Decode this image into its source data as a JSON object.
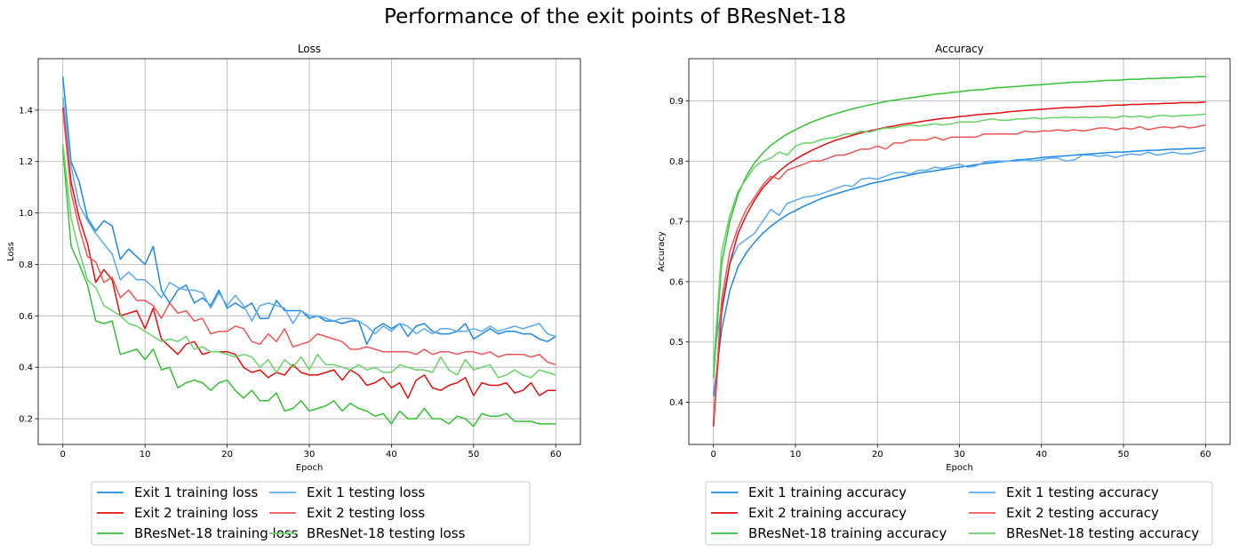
{
  "figure_title": "Performance of the exit points of BResNet-18",
  "colors": {
    "exit1_train": "#1e88e5",
    "exit1_test": "#5aaaf5",
    "exit2_train": "#e01010",
    "exit2_test": "#f05555",
    "bresnet_train": "#33c233",
    "bresnet_test": "#66d466",
    "grid": "#b0b0b0"
  },
  "chart_data": [
    {
      "type": "line",
      "title": "Loss",
      "xlabel": "Epoch",
      "ylabel": "Loss",
      "xlim": [
        -3,
        63
      ],
      "ylim": [
        0.1,
        1.6
      ],
      "xticks": [
        0,
        10,
        20,
        30,
        40,
        50,
        60
      ],
      "yticks": [
        0.2,
        0.4,
        0.6,
        0.8,
        1.0,
        1.2,
        1.4
      ],
      "ytick_labels": [
        "0.2",
        "0.4",
        "0.6",
        "0.8",
        "1.0",
        "1.2",
        "1.4"
      ],
      "grid": true,
      "legend_placement": "below",
      "series": [
        {
          "name": "Exit 1 training loss",
          "color_key": "exit1_train",
          "values": [
            1.53,
            1.2,
            1.12,
            0.98,
            0.93,
            0.97,
            0.95,
            0.82,
            0.86,
            0.83,
            0.8,
            0.87,
            0.7,
            0.65,
            0.7,
            0.72,
            0.65,
            0.67,
            0.64,
            0.7,
            0.63,
            0.65,
            0.63,
            0.65,
            0.59,
            0.59,
            0.66,
            0.62,
            0.62,
            0.62,
            0.59,
            0.6,
            0.58,
            0.58,
            0.57,
            0.58,
            0.58,
            0.49,
            0.55,
            0.57,
            0.55,
            0.57,
            0.52,
            0.56,
            0.57,
            0.54,
            0.53,
            0.53,
            0.54,
            0.57,
            0.51,
            0.53,
            0.55,
            0.53,
            0.54,
            0.54,
            0.53,
            0.53,
            0.51,
            0.5,
            0.52
          ]
        },
        {
          "name": "Exit 1 testing loss",
          "color_key": "exit1_test",
          "values": [
            1.45,
            1.18,
            1.03,
            0.97,
            0.92,
            0.88,
            0.84,
            0.74,
            0.77,
            0.74,
            0.74,
            0.71,
            0.67,
            0.73,
            0.71,
            0.7,
            0.7,
            0.69,
            0.63,
            0.69,
            0.64,
            0.68,
            0.64,
            0.58,
            0.64,
            0.65,
            0.64,
            0.63,
            0.57,
            0.62,
            0.6,
            0.6,
            0.59,
            0.58,
            0.59,
            0.59,
            0.58,
            0.56,
            0.53,
            0.56,
            0.54,
            0.57,
            0.56,
            0.53,
            0.55,
            0.53,
            0.55,
            0.55,
            0.54,
            0.54,
            0.55,
            0.54,
            0.56,
            0.54,
            0.55,
            0.56,
            0.55,
            0.56,
            0.57,
            0.53,
            0.52
          ]
        },
        {
          "name": "Exit 2 training loss",
          "color_key": "exit2_train",
          "values": [
            1.41,
            1.12,
            0.98,
            0.88,
            0.73,
            0.78,
            0.74,
            0.6,
            0.61,
            0.62,
            0.55,
            0.63,
            0.51,
            0.48,
            0.45,
            0.49,
            0.5,
            0.45,
            0.46,
            0.46,
            0.46,
            0.45,
            0.4,
            0.38,
            0.39,
            0.36,
            0.38,
            0.37,
            0.41,
            0.38,
            0.37,
            0.37,
            0.38,
            0.39,
            0.35,
            0.39,
            0.37,
            0.33,
            0.34,
            0.36,
            0.32,
            0.34,
            0.28,
            0.35,
            0.37,
            0.32,
            0.31,
            0.33,
            0.34,
            0.36,
            0.29,
            0.34,
            0.33,
            0.33,
            0.34,
            0.3,
            0.31,
            0.34,
            0.29,
            0.31,
            0.31
          ]
        },
        {
          "name": "Exit 2 testing loss",
          "color_key": "exit2_test",
          "values": [
            1.4,
            1.08,
            0.94,
            0.83,
            0.81,
            0.73,
            0.75,
            0.67,
            0.7,
            0.66,
            0.66,
            0.64,
            0.59,
            0.65,
            0.61,
            0.62,
            0.58,
            0.59,
            0.53,
            0.54,
            0.54,
            0.56,
            0.55,
            0.5,
            0.49,
            0.53,
            0.5,
            0.55,
            0.48,
            0.49,
            0.5,
            0.53,
            0.52,
            0.51,
            0.5,
            0.47,
            0.47,
            0.48,
            0.47,
            0.46,
            0.46,
            0.46,
            0.46,
            0.45,
            0.47,
            0.45,
            0.46,
            0.46,
            0.45,
            0.46,
            0.46,
            0.45,
            0.46,
            0.44,
            0.45,
            0.45,
            0.45,
            0.44,
            0.45,
            0.42,
            0.41
          ]
        },
        {
          "name": "BResNet-18 training loss",
          "color_key": "bresnet_train",
          "values": [
            1.25,
            0.87,
            0.8,
            0.72,
            0.58,
            0.57,
            0.58,
            0.45,
            0.46,
            0.47,
            0.43,
            0.47,
            0.39,
            0.4,
            0.32,
            0.34,
            0.35,
            0.34,
            0.31,
            0.34,
            0.35,
            0.31,
            0.28,
            0.31,
            0.27,
            0.27,
            0.3,
            0.23,
            0.24,
            0.27,
            0.23,
            0.24,
            0.25,
            0.27,
            0.23,
            0.26,
            0.24,
            0.23,
            0.21,
            0.22,
            0.18,
            0.23,
            0.2,
            0.2,
            0.24,
            0.2,
            0.2,
            0.18,
            0.21,
            0.2,
            0.17,
            0.22,
            0.21,
            0.21,
            0.22,
            0.19,
            0.19,
            0.19,
            0.18,
            0.18,
            0.18
          ]
        },
        {
          "name": "BResNet-18 testing loss",
          "color_key": "bresnet_test",
          "values": [
            1.27,
            0.98,
            0.85,
            0.74,
            0.71,
            0.64,
            0.62,
            0.6,
            0.57,
            0.56,
            0.54,
            0.52,
            0.5,
            0.51,
            0.5,
            0.52,
            0.47,
            0.48,
            0.46,
            0.46,
            0.45,
            0.44,
            0.45,
            0.44,
            0.4,
            0.43,
            0.38,
            0.43,
            0.4,
            0.44,
            0.39,
            0.45,
            0.41,
            0.41,
            0.4,
            0.39,
            0.41,
            0.39,
            0.4,
            0.38,
            0.38,
            0.41,
            0.4,
            0.39,
            0.39,
            0.38,
            0.44,
            0.39,
            0.37,
            0.43,
            0.39,
            0.4,
            0.41,
            0.36,
            0.37,
            0.39,
            0.37,
            0.36,
            0.39,
            0.38,
            0.37
          ]
        }
      ]
    },
    {
      "type": "line",
      "title": "Accuracy",
      "xlabel": "Epoch",
      "ylabel": "Accuracy",
      "xlim": [
        -3,
        63
      ],
      "ylim": [
        0.33,
        0.97
      ],
      "xticks": [
        0,
        10,
        20,
        30,
        40,
        50,
        60
      ],
      "yticks": [
        0.4,
        0.5,
        0.6,
        0.7,
        0.8,
        0.9
      ],
      "ytick_labels": [
        "0.4",
        "0.5",
        "0.6",
        "0.7",
        "0.8",
        "0.9"
      ],
      "grid": true,
      "legend_placement": "below",
      "series": [
        {
          "name": "Exit 1 training accuracy",
          "color_key": "exit1_train",
          "values": [
            0.41,
            0.52,
            0.585,
            0.625,
            0.648,
            0.665,
            0.68,
            0.692,
            0.702,
            0.711,
            0.718,
            0.725,
            0.731,
            0.737,
            0.742,
            0.746,
            0.75,
            0.754,
            0.758,
            0.762,
            0.765,
            0.768,
            0.771,
            0.774,
            0.777,
            0.78,
            0.782,
            0.784,
            0.786,
            0.788,
            0.79,
            0.792,
            0.794,
            0.796,
            0.797,
            0.799,
            0.8,
            0.802,
            0.803,
            0.804,
            0.806,
            0.807,
            0.808,
            0.809,
            0.81,
            0.811,
            0.812,
            0.813,
            0.814,
            0.815,
            0.815,
            0.816,
            0.817,
            0.818,
            0.818,
            0.819,
            0.82,
            0.82,
            0.821,
            0.821,
            0.822
          ]
        },
        {
          "name": "Exit 1 testing accuracy",
          "color_key": "exit1_test",
          "values": [
            0.47,
            0.56,
            0.63,
            0.66,
            0.67,
            0.68,
            0.7,
            0.72,
            0.71,
            0.73,
            0.735,
            0.74,
            0.742,
            0.745,
            0.75,
            0.755,
            0.76,
            0.758,
            0.77,
            0.772,
            0.77,
            0.775,
            0.78,
            0.782,
            0.778,
            0.785,
            0.785,
            0.79,
            0.788,
            0.792,
            0.795,
            0.79,
            0.792,
            0.798,
            0.8,
            0.8,
            0.8,
            0.8,
            0.802,
            0.8,
            0.802,
            0.805,
            0.805,
            0.8,
            0.802,
            0.81,
            0.81,
            0.808,
            0.81,
            0.806,
            0.81,
            0.812,
            0.81,
            0.815,
            0.81,
            0.812,
            0.815,
            0.812,
            0.812,
            0.815,
            0.818
          ]
        },
        {
          "name": "Exit 2 training accuracy",
          "color_key": "exit2_train",
          "values": [
            0.36,
            0.55,
            0.63,
            0.68,
            0.71,
            0.735,
            0.755,
            0.77,
            0.783,
            0.794,
            0.803,
            0.811,
            0.818,
            0.824,
            0.83,
            0.835,
            0.839,
            0.843,
            0.847,
            0.85,
            0.853,
            0.856,
            0.858,
            0.861,
            0.863,
            0.865,
            0.867,
            0.869,
            0.871,
            0.872,
            0.874,
            0.875,
            0.877,
            0.878,
            0.879,
            0.88,
            0.882,
            0.883,
            0.884,
            0.885,
            0.886,
            0.887,
            0.888,
            0.889,
            0.889,
            0.89,
            0.891,
            0.891,
            0.892,
            0.893,
            0.893,
            0.894,
            0.894,
            0.895,
            0.895,
            0.896,
            0.896,
            0.897,
            0.897,
            0.897,
            0.898
          ]
        },
        {
          "name": "Exit 2 testing accuracy",
          "color_key": "exit2_test",
          "values": [
            0.37,
            0.57,
            0.65,
            0.69,
            0.72,
            0.74,
            0.76,
            0.775,
            0.77,
            0.785,
            0.79,
            0.795,
            0.8,
            0.8,
            0.805,
            0.81,
            0.81,
            0.815,
            0.82,
            0.82,
            0.825,
            0.82,
            0.83,
            0.83,
            0.835,
            0.835,
            0.835,
            0.84,
            0.835,
            0.84,
            0.84,
            0.84,
            0.84,
            0.845,
            0.845,
            0.845,
            0.845,
            0.845,
            0.85,
            0.848,
            0.85,
            0.85,
            0.852,
            0.85,
            0.852,
            0.85,
            0.852,
            0.855,
            0.855,
            0.852,
            0.855,
            0.853,
            0.857,
            0.852,
            0.855,
            0.857,
            0.855,
            0.858,
            0.855,
            0.857,
            0.86
          ]
        },
        {
          "name": "BResNet-18 training accuracy",
          "color_key": "bresnet_train",
          "values": [
            0.44,
            0.63,
            0.7,
            0.745,
            0.775,
            0.797,
            0.813,
            0.826,
            0.836,
            0.845,
            0.852,
            0.859,
            0.865,
            0.87,
            0.875,
            0.879,
            0.883,
            0.887,
            0.89,
            0.893,
            0.896,
            0.899,
            0.901,
            0.903,
            0.905,
            0.907,
            0.909,
            0.911,
            0.912,
            0.914,
            0.915,
            0.917,
            0.918,
            0.919,
            0.921,
            0.922,
            0.923,
            0.924,
            0.925,
            0.926,
            0.927,
            0.928,
            0.929,
            0.93,
            0.931,
            0.931,
            0.932,
            0.933,
            0.934,
            0.934,
            0.935,
            0.936,
            0.936,
            0.937,
            0.937,
            0.938,
            0.938,
            0.939,
            0.939,
            0.94,
            0.94
          ]
        },
        {
          "name": "BResNet-18 testing accuracy",
          "color_key": "bresnet_test",
          "values": [
            0.46,
            0.65,
            0.71,
            0.75,
            0.77,
            0.79,
            0.8,
            0.805,
            0.815,
            0.81,
            0.825,
            0.83,
            0.83,
            0.835,
            0.838,
            0.84,
            0.845,
            0.845,
            0.85,
            0.848,
            0.852,
            0.855,
            0.855,
            0.858,
            0.86,
            0.858,
            0.86,
            0.862,
            0.86,
            0.862,
            0.865,
            0.865,
            0.865,
            0.868,
            0.87,
            0.868,
            0.868,
            0.87,
            0.87,
            0.872,
            0.87,
            0.872,
            0.872,
            0.873,
            0.872,
            0.873,
            0.872,
            0.873,
            0.873,
            0.872,
            0.875,
            0.873,
            0.875,
            0.872,
            0.875,
            0.876,
            0.874,
            0.876,
            0.876,
            0.877,
            0.878
          ]
        }
      ]
    }
  ]
}
